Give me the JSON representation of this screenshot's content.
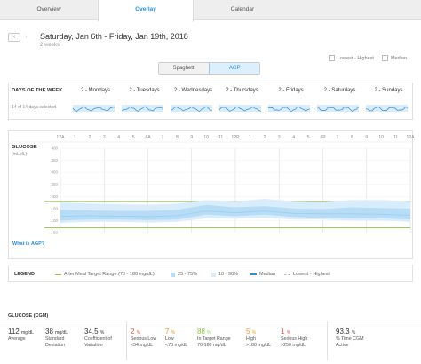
{
  "tabs": [
    "Overview",
    "Overlay",
    "Calendar"
  ],
  "header": {
    "date_range": "Saturday, Jan 6th - Friday, Jan 19th, 2018",
    "duration": "2 weeks",
    "prev_icon": "chevron-left-icon",
    "next_icon": "chevron-right-icon"
  },
  "view_toggle": {
    "options": [
      "Spaghetti",
      "AGP"
    ],
    "selected": "AGP"
  },
  "checkboxes": {
    "lowest_highest": "Lowest - Highest",
    "median": "Median"
  },
  "days_of_week": {
    "title": "DAYS OF THE WEEK",
    "selected_text": "14 of 14 days selected",
    "days": [
      "2 - Mondays",
      "2 - Tuesdays",
      "2 - Wednesdays",
      "2 - Thursdays",
      "2 - Fridays",
      "2 - Saturdays",
      "2 - Sundays"
    ]
  },
  "glucose_chart": {
    "title": "GLUCOSE",
    "unit": "(mL/dL)",
    "link": "What is AGP?",
    "time_labels": [
      "12A",
      "1",
      "2",
      "3",
      "4",
      "5",
      "6A",
      "7",
      "8",
      "9",
      "10",
      "11",
      "12P",
      "1",
      "2",
      "3",
      "4",
      "5",
      "6P",
      "7",
      "8",
      "9",
      "10",
      "11",
      "12A"
    ],
    "y_ticks": [
      "400",
      "350",
      "300",
      "250",
      "200",
      "150",
      "100",
      "50"
    ]
  },
  "chart_data": {
    "type": "area",
    "title": "",
    "xlabel": "",
    "ylabel": "GLUCOSE (mL/dL)",
    "ylim": [
      50,
      400
    ],
    "target_range": [
      70,
      180
    ],
    "x": [
      0,
      2,
      4,
      6,
      8,
      10,
      12,
      14,
      16,
      18,
      20,
      22,
      24
    ],
    "series": [
      {
        "name": "10 - 90%",
        "lower": [
          90,
          95,
          95,
          92,
          95,
          110,
          108,
          112,
          105,
          105,
          100,
          100,
          95
        ],
        "upper": [
          175,
          170,
          168,
          165,
          170,
          185,
          180,
          190,
          180,
          178,
          185,
          185,
          180
        ]
      },
      {
        "name": "25 - 75%",
        "lower": [
          100,
          105,
          105,
          102,
          105,
          125,
          118,
          125,
          115,
          112,
          110,
          110,
          105
        ],
        "upper": [
          145,
          142,
          140,
          140,
          145,
          165,
          155,
          160,
          150,
          148,
          155,
          152,
          150
        ]
      },
      {
        "name": "Median",
        "values": [
          118,
          120,
          118,
          117,
          120,
          140,
          132,
          140,
          130,
          128,
          128,
          126,
          122
        ]
      }
    ]
  },
  "legend": {
    "title": "LEGEND",
    "items": [
      "After Meal Target Range (70 - 180 mg/dL)",
      "25 - 75%",
      "10 - 90%",
      "Median",
      "Lowest - Highest"
    ]
  },
  "stats": {
    "title": "GLUCOSE (CGM)",
    "items": [
      {
        "value": "112",
        "unit": "mg/dL",
        "label1": "Average",
        "label2": "",
        "color": "normal"
      },
      {
        "value": "38",
        "unit": "mg/dL",
        "label1": "Standard",
        "label2": "Deviation",
        "color": "normal"
      },
      {
        "value": "34.5",
        "unit": "%",
        "label1": "Coefficient of",
        "label2": "Variation",
        "color": "normal"
      },
      {
        "value": "2",
        "unit": "%",
        "label1": "Serious Low",
        "label2": "<54 mg/dL",
        "color": "red"
      },
      {
        "value": "7",
        "unit": "%",
        "label1": "Low",
        "label2": "<70 mg/dL",
        "color": "orange"
      },
      {
        "value": "88",
        "unit": "%",
        "label1": "In Target Range",
        "label2": "70-180 mg/dL",
        "color": "green"
      },
      {
        "value": "5",
        "unit": "%",
        "label1": "High",
        "label2": ">180 mg/dL",
        "color": "orange"
      },
      {
        "value": "1",
        "unit": "%",
        "label1": "Serious High",
        "label2": ">250 mg/dL",
        "color": "red"
      },
      {
        "value": "93.3",
        "unit": "%",
        "label1": "% Time CGM",
        "label2": "Active",
        "color": "normal"
      }
    ]
  },
  "colors": {
    "accent": "#2a8fd6",
    "band_outer": "#d9ecfb",
    "band_inner": "#b7dcf5",
    "target": "#8cc63f"
  }
}
